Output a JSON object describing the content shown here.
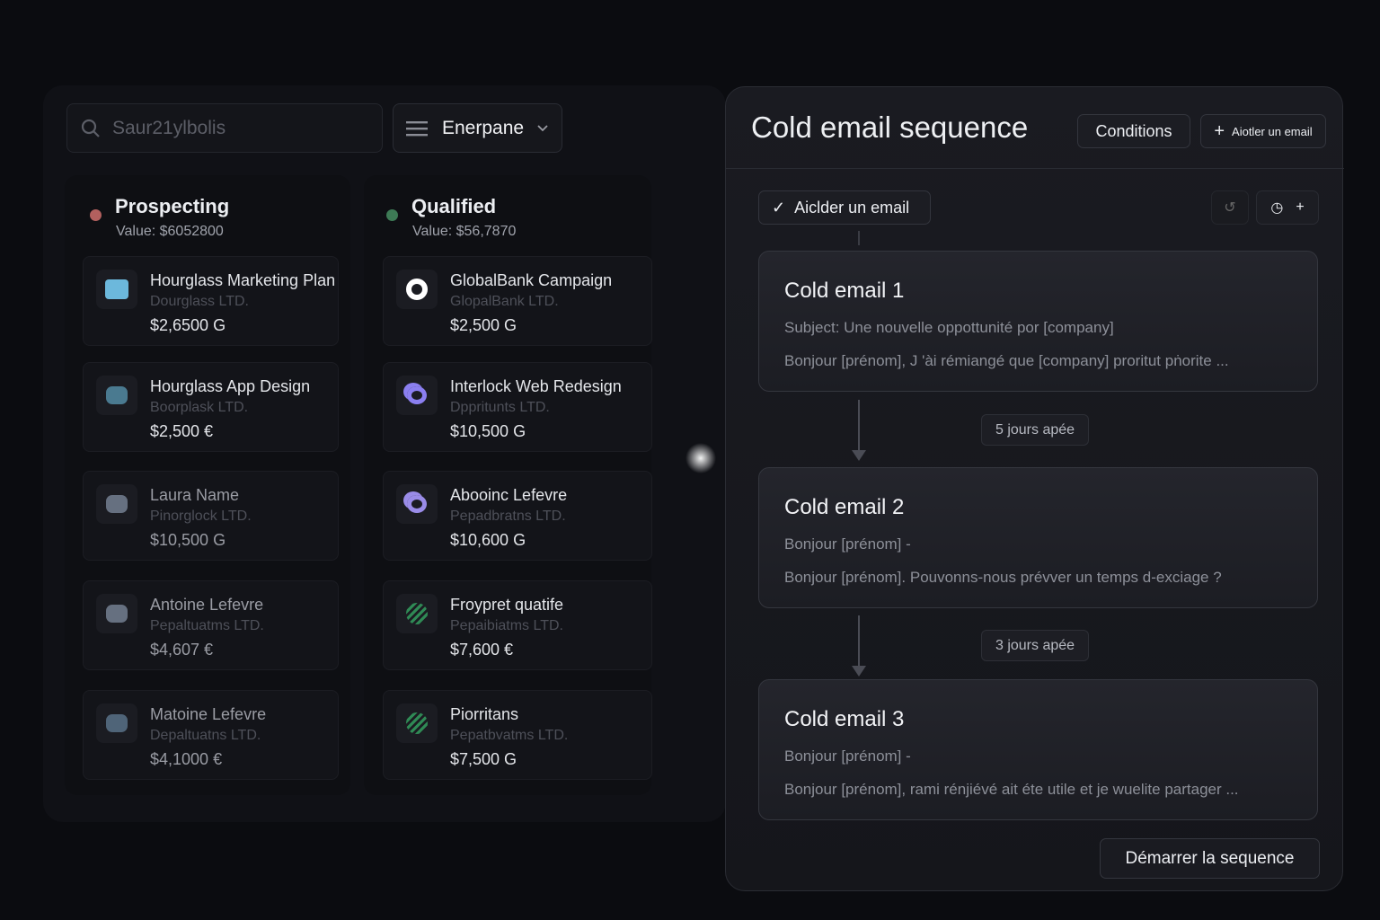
{
  "board": {
    "search": {
      "placeholder": "Saur21ylbolis"
    },
    "filter": {
      "label": "Enerpane"
    },
    "columns": [
      {
        "title": "Prospecting",
        "value": "Value: $6052800",
        "dot_color": "#b2605e",
        "cards": [
          {
            "title": "Hourglass Marketing Plan",
            "company": "Dourglass LTD.",
            "amount": "$2,6500 G",
            "icon": "hourglass-logo-icon",
            "icon_color": "#6cb8dc"
          },
          {
            "title": "Hourglass App Design",
            "company": "Boorplask LTD.",
            "amount": "$2,500 €",
            "icon": "app-logo-icon",
            "icon_color": "#4a7a90"
          },
          {
            "title": "Laura Name",
            "company": "Pinorglock LTD.",
            "amount": "$10,500 G",
            "icon": "blob-logo-icon",
            "icon_color": "#667080"
          },
          {
            "title": "Antoine Lefevre",
            "company": "Pepaltuatms LTD.",
            "amount": "$4,607 €",
            "icon": "blob-logo-icon",
            "icon_color": "#667080"
          },
          {
            "title": "Matoine Lefevre",
            "company": "Depaltuatns LTD.",
            "amount": "$4,1000 €",
            "icon": "boot-logo-icon",
            "icon_color": "#4f6478"
          }
        ]
      },
      {
        "title": "Qualified",
        "value": "Value: $56,7870",
        "dot_color": "#3d7a55",
        "cards": [
          {
            "title": "GlobalBank Campaign",
            "company": "GlopalBank LTD.",
            "amount": "$2,500 G",
            "icon": "ring-logo-icon",
            "icon_color": "#ffffff"
          },
          {
            "title": "Interlock Web Redesign",
            "company": "Dppritunts LTD.",
            "amount": "$10,500 G",
            "icon": "interlock-logo-icon",
            "icon_color": "#8b7ff0"
          },
          {
            "title": "Abooinc Lefevre",
            "company": "Pepadbratns LTD.",
            "amount": "$10,600 G",
            "icon": "interlock-logo-icon",
            "icon_color": "#9a8ce8"
          },
          {
            "title": "Froypret quatife",
            "company": "Pepaibiatms LTD.",
            "amount": "$7,600 €",
            "icon": "leaf-logo-icon",
            "icon_color": "#2f8a55"
          },
          {
            "title": "Piorritans",
            "company": "Pepatbvatms LTD.",
            "amount": "$7,500 G",
            "icon": "leaf-logo-icon",
            "icon_color": "#2f8a55"
          }
        ]
      }
    ]
  },
  "sequence": {
    "title": "Cold email sequence",
    "conditions_label": "Conditions",
    "add_email_header_label": "Aiotler un email",
    "add_email_label": "Aiclder un email",
    "emails": [
      {
        "title": "Cold email 1",
        "line1": "Subject: Une nouvelle oppottunité por [company]",
        "line2": "Bonjour [prénom], J 'ài rémiangé que [company] proritut pṅorite  ..."
      },
      {
        "title": "Cold email 2",
        "line1": "Bonjour [prénom]  -",
        "line2": "Bonjour [prénom]. Pouvonns-nous prévver un temps d-exciage ?"
      },
      {
        "title": "Cold email 3",
        "line1": "Bonjour [prénom]  -",
        "line2": "Bonjour [prénom], rami rénjiévé ait éte utile et je wuelite partager ..."
      }
    ],
    "delays": [
      "5 jours apée",
      "3 jours apée"
    ],
    "start_label": "Démarrer la sequence"
  }
}
